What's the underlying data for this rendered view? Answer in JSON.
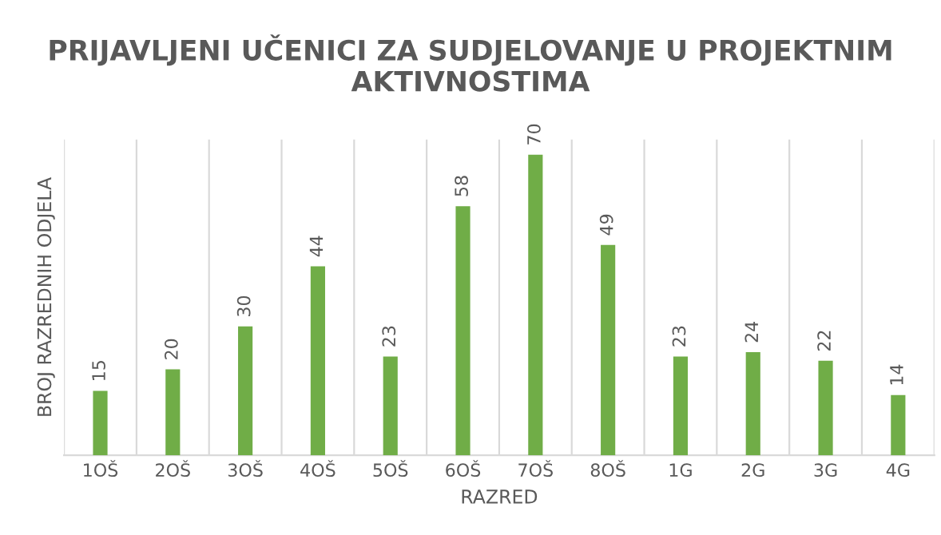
{
  "chart_data": {
    "type": "bar",
    "title": "PRIJAVLJENI UČENICI ZA SUDJELOVANJE U PROJEKTNIM AKTIVNOSTIMA",
    "xlabel": "RAZRED",
    "ylabel": "BROJ RAZREDNIH ODJELA",
    "categories": [
      "1OŠ",
      "2OŠ",
      "3OŠ",
      "4OŠ",
      "5OŠ",
      "6OŠ",
      "7OŠ",
      "8OŠ",
      "1G",
      "2G",
      "3G",
      "4G"
    ],
    "values": [
      15,
      20,
      30,
      44,
      23,
      58,
      70,
      49,
      23,
      24,
      22,
      14
    ],
    "color": "#70ad47",
    "data_labels": true,
    "grid": "x",
    "tick_labels": "x"
  }
}
